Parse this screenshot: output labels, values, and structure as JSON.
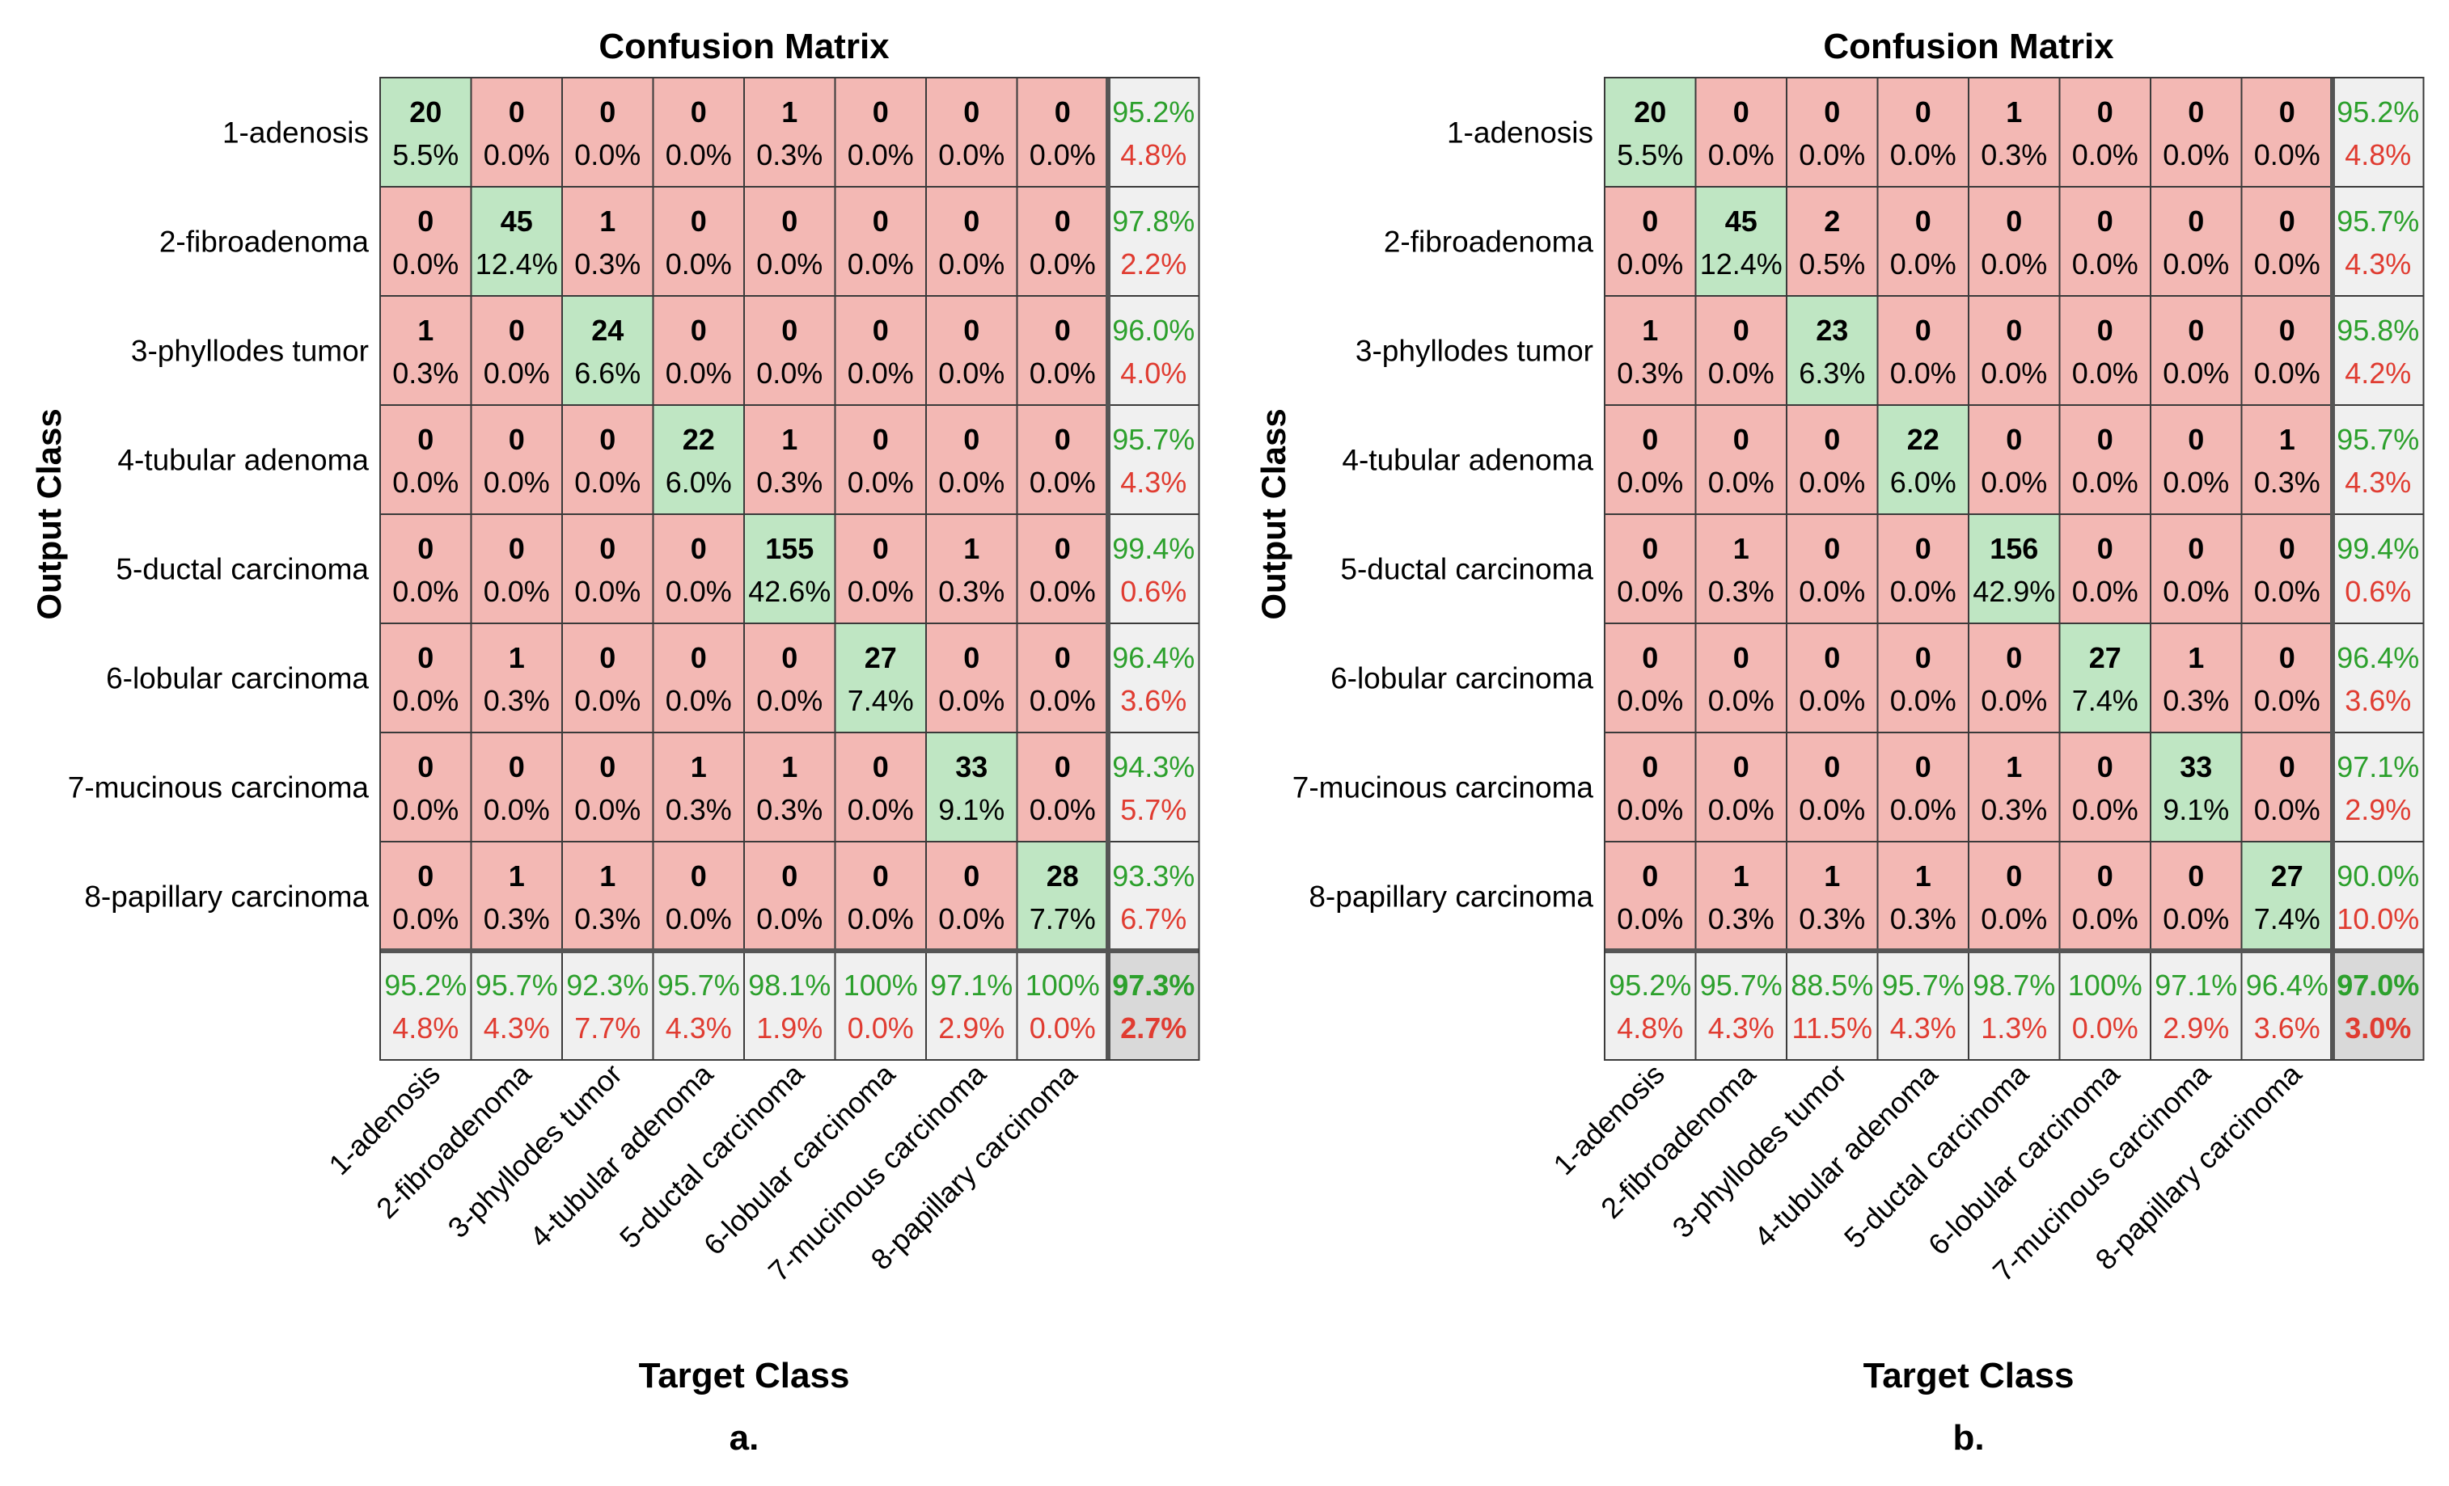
{
  "chart_data": [
    {
      "type": "heatmap",
      "title": "Confusion Matrix",
      "xlabel": "Target Class",
      "ylabel": "Output Class",
      "panel_label": "a.",
      "classes": [
        "1-adenosis",
        "2-fibroadenoma",
        "3-phyllodes tumor",
        "4-tubular adenoma",
        "5-ductal carcinoma",
        "6-lobular carcinoma",
        "7-mucinous carcinoma",
        "8-papillary carcinoma"
      ],
      "counts": [
        [
          20,
          0,
          0,
          0,
          1,
          0,
          0,
          0
        ],
        [
          0,
          45,
          1,
          0,
          0,
          0,
          0,
          0
        ],
        [
          1,
          0,
          24,
          0,
          0,
          0,
          0,
          0
        ],
        [
          0,
          0,
          0,
          22,
          1,
          0,
          0,
          0
        ],
        [
          0,
          0,
          0,
          0,
          155,
          0,
          1,
          0
        ],
        [
          0,
          1,
          0,
          0,
          0,
          27,
          0,
          0
        ],
        [
          0,
          0,
          0,
          1,
          1,
          0,
          33,
          0
        ],
        [
          0,
          1,
          1,
          0,
          0,
          0,
          0,
          28
        ]
      ],
      "percents": [
        [
          "5.5%",
          "0.0%",
          "0.0%",
          "0.0%",
          "0.3%",
          "0.0%",
          "0.0%",
          "0.0%"
        ],
        [
          "0.0%",
          "12.4%",
          "0.3%",
          "0.0%",
          "0.0%",
          "0.0%",
          "0.0%",
          "0.0%"
        ],
        [
          "0.3%",
          "0.0%",
          "6.6%",
          "0.0%",
          "0.0%",
          "0.0%",
          "0.0%",
          "0.0%"
        ],
        [
          "0.0%",
          "0.0%",
          "0.0%",
          "6.0%",
          "0.3%",
          "0.0%",
          "0.0%",
          "0.0%"
        ],
        [
          "0.0%",
          "0.0%",
          "0.0%",
          "0.0%",
          "42.6%",
          "0.0%",
          "0.3%",
          "0.0%"
        ],
        [
          "0.0%",
          "0.3%",
          "0.0%",
          "0.0%",
          "0.0%",
          "7.4%",
          "0.0%",
          "0.0%"
        ],
        [
          "0.0%",
          "0.0%",
          "0.0%",
          "0.3%",
          "0.3%",
          "0.0%",
          "9.1%",
          "0.0%"
        ],
        [
          "0.0%",
          "0.3%",
          "0.3%",
          "0.0%",
          "0.0%",
          "0.0%",
          "0.0%",
          "7.7%"
        ]
      ],
      "row_summary": [
        [
          "95.2%",
          "4.8%"
        ],
        [
          "97.8%",
          "2.2%"
        ],
        [
          "96.0%",
          "4.0%"
        ],
        [
          "95.7%",
          "4.3%"
        ],
        [
          "99.4%",
          "0.6%"
        ],
        [
          "96.4%",
          "3.6%"
        ],
        [
          "94.3%",
          "5.7%"
        ],
        [
          "93.3%",
          "6.7%"
        ]
      ],
      "col_summary": [
        [
          "95.2%",
          "4.8%"
        ],
        [
          "95.7%",
          "4.3%"
        ],
        [
          "92.3%",
          "7.7%"
        ],
        [
          "95.7%",
          "4.3%"
        ],
        [
          "98.1%",
          "1.9%"
        ],
        [
          "100%",
          "0.0%"
        ],
        [
          "97.1%",
          "2.9%"
        ],
        [
          "100%",
          "0.0%"
        ]
      ],
      "overall": [
        "97.3%",
        "2.7%"
      ]
    },
    {
      "type": "heatmap",
      "title": "Confusion Matrix",
      "xlabel": "Target Class",
      "ylabel": "Output Class",
      "panel_label": "b.",
      "classes": [
        "1-adenosis",
        "2-fibroadenoma",
        "3-phyllodes tumor",
        "4-tubular adenoma",
        "5-ductal carcinoma",
        "6-lobular carcinoma",
        "7-mucinous carcinoma",
        "8-papillary carcinoma"
      ],
      "counts": [
        [
          20,
          0,
          0,
          0,
          1,
          0,
          0,
          0
        ],
        [
          0,
          45,
          2,
          0,
          0,
          0,
          0,
          0
        ],
        [
          1,
          0,
          23,
          0,
          0,
          0,
          0,
          0
        ],
        [
          0,
          0,
          0,
          22,
          0,
          0,
          0,
          1
        ],
        [
          0,
          1,
          0,
          0,
          156,
          0,
          0,
          0
        ],
        [
          0,
          0,
          0,
          0,
          0,
          27,
          1,
          0
        ],
        [
          0,
          0,
          0,
          0,
          1,
          0,
          33,
          0
        ],
        [
          0,
          1,
          1,
          1,
          0,
          0,
          0,
          27
        ]
      ],
      "percents": [
        [
          "5.5%",
          "0.0%",
          "0.0%",
          "0.0%",
          "0.3%",
          "0.0%",
          "0.0%",
          "0.0%"
        ],
        [
          "0.0%",
          "12.4%",
          "0.5%",
          "0.0%",
          "0.0%",
          "0.0%",
          "0.0%",
          "0.0%"
        ],
        [
          "0.3%",
          "0.0%",
          "6.3%",
          "0.0%",
          "0.0%",
          "0.0%",
          "0.0%",
          "0.0%"
        ],
        [
          "0.0%",
          "0.0%",
          "0.0%",
          "6.0%",
          "0.0%",
          "0.0%",
          "0.0%",
          "0.3%"
        ],
        [
          "0.0%",
          "0.3%",
          "0.0%",
          "0.0%",
          "42.9%",
          "0.0%",
          "0.0%",
          "0.0%"
        ],
        [
          "0.0%",
          "0.0%",
          "0.0%",
          "0.0%",
          "0.0%",
          "7.4%",
          "0.3%",
          "0.0%"
        ],
        [
          "0.0%",
          "0.0%",
          "0.0%",
          "0.0%",
          "0.3%",
          "0.0%",
          "9.1%",
          "0.0%"
        ],
        [
          "0.0%",
          "0.3%",
          "0.3%",
          "0.3%",
          "0.0%",
          "0.0%",
          "0.0%",
          "7.4%"
        ]
      ],
      "row_summary": [
        [
          "95.2%",
          "4.8%"
        ],
        [
          "95.7%",
          "4.3%"
        ],
        [
          "95.8%",
          "4.2%"
        ],
        [
          "95.7%",
          "4.3%"
        ],
        [
          "99.4%",
          "0.6%"
        ],
        [
          "96.4%",
          "3.6%"
        ],
        [
          "97.1%",
          "2.9%"
        ],
        [
          "90.0%",
          "10.0%"
        ]
      ],
      "col_summary": [
        [
          "95.2%",
          "4.8%"
        ],
        [
          "95.7%",
          "4.3%"
        ],
        [
          "88.5%",
          "11.5%"
        ],
        [
          "95.7%",
          "4.3%"
        ],
        [
          "98.7%",
          "1.3%"
        ],
        [
          "100%",
          "0.0%"
        ],
        [
          "97.1%",
          "2.9%"
        ],
        [
          "96.4%",
          "3.6%"
        ]
      ],
      "overall": [
        "97.0%",
        "3.0%"
      ]
    }
  ],
  "colors": {
    "correct_cell": "#bfe6c3",
    "incorrect_cell": "#f3b8b4",
    "summary_cell": "#f0f0f0",
    "overall_cell": "#d9d9d9",
    "accuracy_text": "#2ca02c",
    "error_text": "#e03c31",
    "grid": "#3a3a3a"
  }
}
